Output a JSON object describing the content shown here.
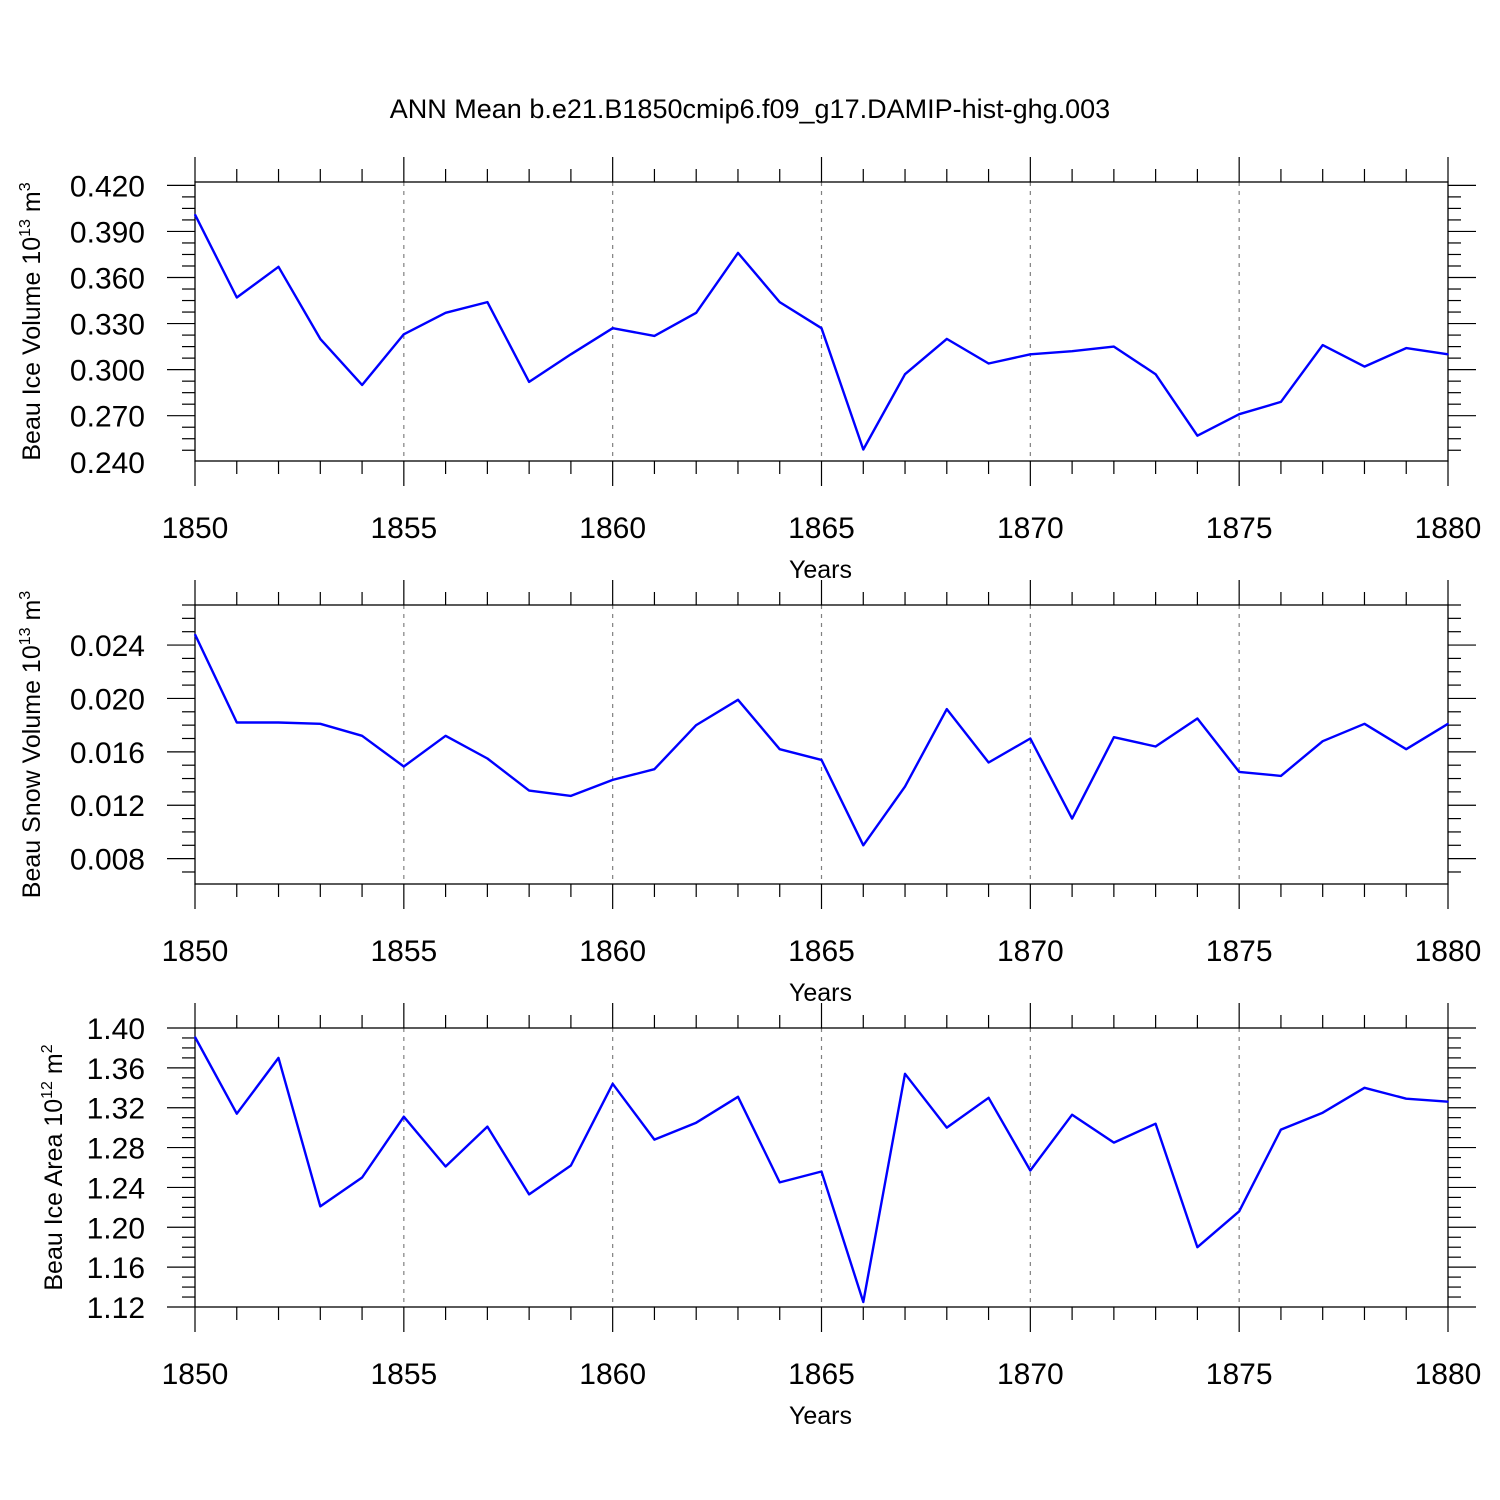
{
  "title": "ANN Mean b.e21.B1850cmip6.f09_g17.DAMIP-hist-ghg.003",
  "series_color": "#0000ff",
  "chart_data": [
    {
      "type": "line",
      "xlabel": "Years",
      "ylabel": "Beau Ice Volume 10",
      "ylabel_exp": "13",
      "ylabel_unit": " m",
      "ylabel_unit_exp": "3",
      "xlim": [
        1850,
        1880
      ],
      "ylim": [
        0.2405,
        0.4222
      ],
      "xticks": [
        1850,
        1855,
        1860,
        1865,
        1870,
        1875,
        1880
      ],
      "xtick_labels": [
        "1850",
        "1855",
        "1860",
        "1865",
        "1870",
        "1875",
        "1880"
      ],
      "yticks": [
        0.24,
        0.27,
        0.3,
        0.33,
        0.36,
        0.39,
        0.42
      ],
      "ytick_labels": [
        "0.240",
        "0.270",
        "0.300",
        "0.330",
        "0.360",
        "0.390",
        "0.420"
      ],
      "grid_x": true,
      "x": [
        1850,
        1851,
        1852,
        1853,
        1854,
        1855,
        1856,
        1857,
        1858,
        1859,
        1860,
        1861,
        1862,
        1863,
        1864,
        1865,
        1866,
        1867,
        1868,
        1869,
        1870,
        1871,
        1872,
        1873,
        1874,
        1875,
        1876,
        1877,
        1878,
        1879,
        1880
      ],
      "y": [
        0.401,
        0.347,
        0.367,
        0.32,
        0.29,
        0.323,
        0.337,
        0.344,
        0.292,
        0.31,
        0.327,
        0.322,
        0.337,
        0.376,
        0.344,
        0.327,
        0.248,
        0.297,
        0.32,
        0.304,
        0.31,
        0.312,
        0.315,
        0.297,
        0.257,
        0.271,
        0.279,
        0.316,
        0.302,
        0.314,
        0.31
      ]
    },
    {
      "type": "line",
      "xlabel": "Years",
      "ylabel": "Beau Snow Volume 10",
      "ylabel_exp": "13",
      "ylabel_unit": " m",
      "ylabel_unit_exp": "3",
      "xlim": [
        1850,
        1880
      ],
      "ylim": [
        0.0061,
        0.027
      ],
      "xticks": [
        1850,
        1855,
        1860,
        1865,
        1870,
        1875,
        1880
      ],
      "xtick_labels": [
        "1850",
        "1855",
        "1860",
        "1865",
        "1870",
        "1875",
        "1880"
      ],
      "yticks": [
        0.008,
        0.012,
        0.016,
        0.02,
        0.024
      ],
      "ytick_labels": [
        "0.008",
        "0.012",
        "0.016",
        "0.020",
        "0.024"
      ],
      "grid_x": true,
      "x": [
        1850,
        1851,
        1852,
        1853,
        1854,
        1855,
        1856,
        1857,
        1858,
        1859,
        1860,
        1861,
        1862,
        1863,
        1864,
        1865,
        1866,
        1867,
        1868,
        1869,
        1870,
        1871,
        1872,
        1873,
        1874,
        1875,
        1876,
        1877,
        1878,
        1879,
        1880
      ],
      "y": [
        0.0248,
        0.0182,
        0.0182,
        0.0181,
        0.0172,
        0.0149,
        0.0172,
        0.0155,
        0.0131,
        0.0127,
        0.0139,
        0.0147,
        0.018,
        0.0199,
        0.0162,
        0.0154,
        0.009,
        0.0134,
        0.0192,
        0.0152,
        0.017,
        0.011,
        0.0171,
        0.0164,
        0.0185,
        0.0145,
        0.0142,
        0.0168,
        0.0181,
        0.0162,
        0.0181
      ]
    },
    {
      "type": "line",
      "xlabel": "Years",
      "ylabel": "Beau Ice Area 10",
      "ylabel_exp": "12",
      "ylabel_unit": " m",
      "ylabel_unit_exp": "2",
      "xlim": [
        1850,
        1880
      ],
      "ylim": [
        1.12,
        1.4
      ],
      "xticks": [
        1850,
        1855,
        1860,
        1865,
        1870,
        1875,
        1880
      ],
      "xtick_labels": [
        "1850",
        "1855",
        "1860",
        "1865",
        "1870",
        "1875",
        "1880"
      ],
      "yticks": [
        1.12,
        1.16,
        1.2,
        1.24,
        1.28,
        1.32,
        1.36,
        1.4
      ],
      "ytick_labels": [
        "1.12",
        "1.16",
        "1.20",
        "1.24",
        "1.28",
        "1.32",
        "1.36",
        "1.40"
      ],
      "grid_x": true,
      "x": [
        1850,
        1851,
        1852,
        1853,
        1854,
        1855,
        1856,
        1857,
        1858,
        1859,
        1860,
        1861,
        1862,
        1863,
        1864,
        1865,
        1866,
        1867,
        1868,
        1869,
        1870,
        1871,
        1872,
        1873,
        1874,
        1875,
        1876,
        1877,
        1878,
        1879,
        1880
      ],
      "y": [
        1.391,
        1.314,
        1.37,
        1.221,
        1.25,
        1.311,
        1.261,
        1.301,
        1.233,
        1.262,
        1.344,
        1.288,
        1.305,
        1.331,
        1.245,
        1.256,
        1.125,
        1.354,
        1.3,
        1.33,
        1.257,
        1.313,
        1.285,
        1.304,
        1.18,
        1.216,
        1.298,
        1.315,
        1.34,
        1.329,
        1.326
      ]
    }
  ]
}
